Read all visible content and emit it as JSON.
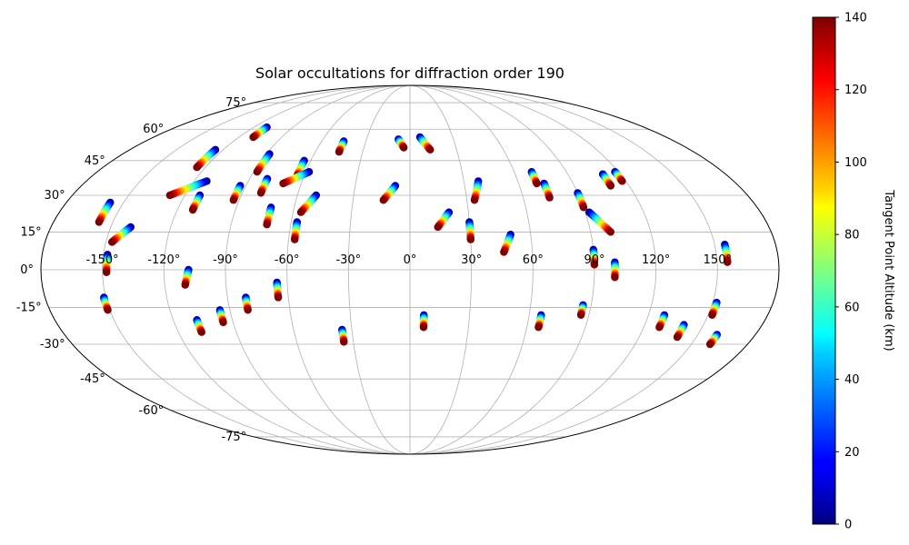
{
  "chart_data": {
    "type": "scatter",
    "projection": "mollweide",
    "title": "Solar occultations for diffraction order 190",
    "lon_ticks": [
      "-150°",
      "-120°",
      "-90°",
      "-60°",
      "-30°",
      "0°",
      "30°",
      "60°",
      "90°",
      "120°",
      "150°"
    ],
    "lat_ticks": [
      "75°",
      "60°",
      "45°",
      "30°",
      "15°",
      "0°",
      "-15°",
      "-30°",
      "-45°",
      "-60°",
      "-75°"
    ],
    "colorbar": {
      "label": "Tangent Point Altitude (km)",
      "min": 0,
      "max": 140,
      "ticks": [
        "0",
        "20",
        "40",
        "60",
        "80",
        "100",
        "120",
        "140"
      ],
      "colormap": "jet"
    },
    "occultation_tracks": [
      {
        "lon": -157,
        "lat_top": 27,
        "lat_bottom": 19
      },
      {
        "lon": -148,
        "lat_top": 6,
        "lat_bottom": -1
      },
      {
        "lon": -140,
        "lat_top": 17,
        "lat_bottom": 11,
        "lon_end": -147
      },
      {
        "lon": -125,
        "lat_top": 50,
        "lat_bottom": 42
      },
      {
        "lon": -113,
        "lat_top": 36,
        "lat_bottom": 30,
        "lon_end": -128
      },
      {
        "lon": -112,
        "lat_top": 30,
        "lat_bottom": 24
      },
      {
        "lon": -110,
        "lat_top": 61,
        "lat_bottom": 56
      },
      {
        "lon": -93,
        "lat_top": 34,
        "lat_bottom": 28
      },
      {
        "lon": -88,
        "lat_top": 48,
        "lat_bottom": 40
      },
      {
        "lon": -80,
        "lat_top": 37,
        "lat_bottom": 31
      },
      {
        "lon": -72,
        "lat_top": 25,
        "lat_bottom": 18
      },
      {
        "lon": -64,
        "lat_top": 45,
        "lat_bottom": 38
      },
      {
        "lon": -58,
        "lat_top": 40,
        "lat_bottom": 35,
        "lon_end": -70
      },
      {
        "lon": -50,
        "lat_top": 30,
        "lat_bottom": 23,
        "lon_end": -56
      },
      {
        "lon": -57,
        "lat_top": 19,
        "lat_bottom": 12
      },
      {
        "lon": -45,
        "lat_top": 54,
        "lat_bottom": 49
      },
      {
        "lon": -8,
        "lat_top": 34,
        "lat_bottom": 28,
        "lon_end": -14
      },
      {
        "lon": -8,
        "lat_top": 55,
        "lat_bottom": 51,
        "lon_end": -4
      },
      {
        "lon": 7,
        "lat_top": 56,
        "lat_bottom": 50,
        "lon_end": 13
      },
      {
        "lon": 20,
        "lat_top": 23,
        "lat_bottom": 17,
        "lon_end": 14
      },
      {
        "lon": 30,
        "lat_top": 19,
        "lat_bottom": 12
      },
      {
        "lon": 38,
        "lat_top": 36,
        "lat_bottom": 28,
        "lon_end": 34
      },
      {
        "lon": 50,
        "lat_top": 14,
        "lat_bottom": 7,
        "lon_end": 46
      },
      {
        "lon": 70,
        "lat_top": 40,
        "lat_bottom": 35
      },
      {
        "lon": 74,
        "lat_top": 35,
        "lat_bottom": 29
      },
      {
        "lon": 90,
        "lat_top": 31,
        "lat_bottom": 25
      },
      {
        "lon": 92,
        "lat_top": 23,
        "lat_bottom": 15,
        "lon_end": 100
      },
      {
        "lon": 90,
        "lat_top": 8,
        "lat_bottom": 2
      },
      {
        "lon": 100,
        "lat_top": 3,
        "lat_bottom": -3
      },
      {
        "lon": 110,
        "lat_top": 39,
        "lat_bottom": 34
      },
      {
        "lon": 118,
        "lat_top": 40,
        "lat_bottom": 36
      },
      {
        "lon": 155,
        "lat_top": 10,
        "lat_bottom": 3
      },
      {
        "lon": -151,
        "lat_top": -11,
        "lat_bottom": -16
      },
      {
        "lon": -108,
        "lat_top": 0,
        "lat_bottom": -6,
        "lon_end": -110
      },
      {
        "lon": -108,
        "lat_top": -20,
        "lat_bottom": -25
      },
      {
        "lon": -95,
        "lat_top": -16,
        "lat_bottom": -21
      },
      {
        "lon": -81,
        "lat_top": -11,
        "lat_bottom": -16
      },
      {
        "lon": -65,
        "lat_top": -5,
        "lat_bottom": -11
      },
      {
        "lon": -35,
        "lat_top": -24,
        "lat_bottom": -29
      },
      {
        "lon": 7,
        "lat_top": -18,
        "lat_bottom": -23
      },
      {
        "lon": 66,
        "lat_top": -18,
        "lat_bottom": -23
      },
      {
        "lon": 86,
        "lat_top": -14,
        "lat_bottom": -18
      },
      {
        "lon": 128,
        "lat_top": -18,
        "lat_bottom": -23
      },
      {
        "lon": 140,
        "lat_top": -22,
        "lat_bottom": -27
      },
      {
        "lon": 152,
        "lat_top": -13,
        "lat_bottom": -18
      },
      {
        "lon": 160,
        "lat_top": -26,
        "lat_bottom": -30
      }
    ]
  }
}
